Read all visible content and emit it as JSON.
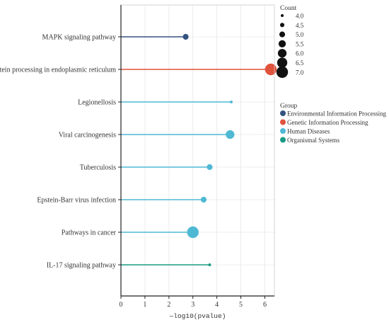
{
  "chart_data": {
    "type": "lollipop",
    "xlabel": "—log10(pvalue)",
    "xlim": [
      0,
      6.4
    ],
    "x_ticks": [
      "0",
      "1",
      "2",
      "3",
      "4",
      "5",
      "6"
    ],
    "grid": true,
    "legend_position": "right",
    "terms": [
      {
        "name": "MAPK signaling pathway",
        "value": 2.7,
        "count": 5,
        "group": "Environmental Information Processing"
      },
      {
        "name": "Protein processing in endoplasmic reticulum",
        "value": 6.25,
        "count": 7,
        "group": "Genetic Information Processing"
      },
      {
        "name": "Legionellosis",
        "value": 4.6,
        "count": 4,
        "group": "Human Diseases"
      },
      {
        "name": "Viral carcinogenesis",
        "value": 4.55,
        "count": 6,
        "group": "Human Diseases"
      },
      {
        "name": "Tuberculosis",
        "value": 3.7,
        "count": 5,
        "group": "Human Diseases"
      },
      {
        "name": "Epstein-Barr virus infection",
        "value": 3.45,
        "count": 5,
        "group": "Human Diseases"
      },
      {
        "name": "Pathways in cancer",
        "value": 3.0,
        "count": 7,
        "group": "Human Diseases"
      },
      {
        "name": "IL-17 signaling pathway",
        "value": 3.7,
        "count": 4,
        "group": "Organismal Systems"
      }
    ],
    "size_legend": {
      "title": "Count",
      "labels": [
        "4.0",
        "4.5",
        "5.0",
        "5.5",
        "6.0",
        "6.5",
        "7.0"
      ]
    },
    "group_legend": {
      "title": "Group",
      "items": [
        {
          "label": "Environmental Information Processing",
          "color": "#33527f"
        },
        {
          "label": "Genetic Information Processing",
          "color": "#e0523b"
        },
        {
          "label": "Human Diseases",
          "color": "#4fb9d4"
        },
        {
          "label": "Organismal Systems",
          "color": "#1a9a84"
        }
      ]
    }
  }
}
